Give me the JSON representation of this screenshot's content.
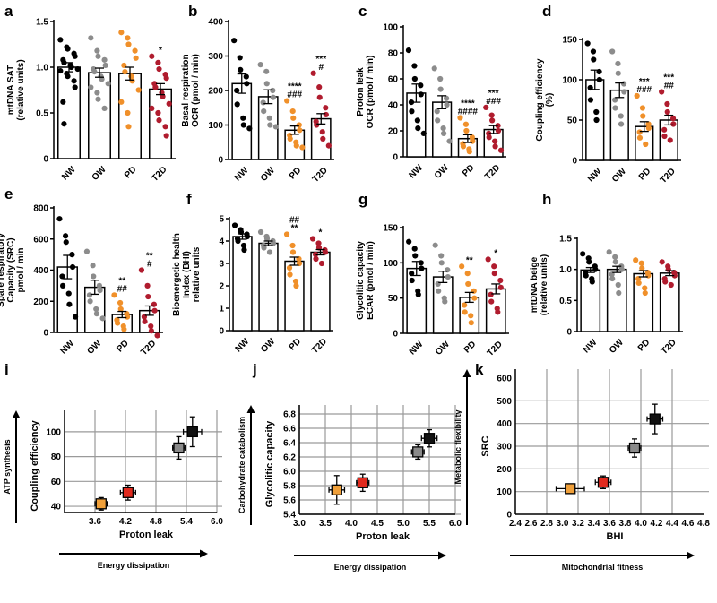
{
  "groups": [
    "NW",
    "OW",
    "PD",
    "T2D"
  ],
  "colors": {
    "NW": "#000000",
    "OW": "#8c8c8c",
    "PD": "#f0902a",
    "T2D": "#b01c2e"
  },
  "markerColors": {
    "NW": "#111111",
    "OW": "#8a8a8a",
    "PD": "#f0a03a",
    "T2D": "#e02a1e"
  },
  "chart_data": [
    {
      "type": "bar",
      "id": "a",
      "letter": "a",
      "ylabel": [
        "mtDNA SAT",
        "(relative units)"
      ],
      "ylim": [
        0,
        1.5
      ],
      "yticks": [
        0,
        0.5,
        1.0,
        1.5
      ],
      "ytickLabels": [
        "0",
        "0.5",
        "1.0",
        "1.5"
      ],
      "categories": [
        "NW",
        "OW",
        "PD",
        "T2D"
      ],
      "values": [
        1.0,
        0.94,
        0.93,
        0.76
      ],
      "errors": [
        0.05,
        0.05,
        0.07,
        0.06
      ],
      "annotations": [
        "",
        "",
        "",
        "*"
      ],
      "points": [
        [
          1.3,
          1.22,
          1.2,
          1.15,
          1.12,
          1.08,
          1.05,
          1.02,
          1.0,
          0.98,
          0.96,
          0.93,
          0.9,
          0.85,
          0.78,
          0.62,
          0.38
        ],
        [
          1.32,
          1.18,
          1.12,
          1.08,
          1.02,
          0.98,
          0.95,
          0.9,
          0.87,
          0.82,
          0.78,
          0.72,
          0.65,
          0.55
        ],
        [
          1.38,
          1.32,
          1.25,
          1.18,
          1.1,
          1.02,
          0.95,
          0.9,
          0.85,
          0.75,
          0.62,
          0.5,
          0.35
        ],
        [
          1.12,
          1.05,
          0.98,
          0.92,
          0.88,
          0.82,
          0.78,
          0.72,
          0.68,
          0.6,
          0.55,
          0.5,
          0.42,
          0.35,
          0.25
        ]
      ]
    },
    {
      "type": "bar",
      "id": "b",
      "letter": "b",
      "ylabel": [
        "Basal respiration",
        "OCR (pmol / min)"
      ],
      "ylim": [
        0,
        400
      ],
      "yticks": [
        0,
        100,
        200,
        300,
        400
      ],
      "ytickLabels": [
        "0",
        "100",
        "200",
        "300",
        "400"
      ],
      "categories": [
        "NW",
        "OW",
        "PD",
        "T2D"
      ],
      "values": [
        220,
        182,
        85,
        118
      ],
      "errors": [
        28,
        20,
        12,
        15
      ],
      "annotations": [
        "",
        "",
        "****\n###",
        "***\n#"
      ],
      "points": [
        [
          345,
          295,
          260,
          240,
          220,
          200,
          160,
          120,
          100,
          90
        ],
        [
          275,
          255,
          220,
          200,
          180,
          165,
          140,
          120,
          100,
          95
        ],
        [
          170,
          140,
          120,
          100,
          85,
          70,
          60,
          50,
          40,
          35
        ],
        [
          250,
          210,
          180,
          150,
          130,
          110,
          100,
          80,
          60,
          40
        ]
      ]
    },
    {
      "type": "bar",
      "id": "c",
      "letter": "c",
      "ylabel": [
        "Proton leak",
        "OCR (pmol / min)"
      ],
      "ylim": [
        0,
        100
      ],
      "yticks": [
        0,
        20,
        40,
        60,
        80,
        100
      ],
      "ytickLabels": [
        "0",
        "20",
        "40",
        "60",
        "80",
        "100"
      ],
      "categories": [
        "NW",
        "OW",
        "PD",
        "T2D"
      ],
      "values": [
        49,
        42,
        14,
        21
      ],
      "errors": [
        7,
        5,
        3,
        3
      ],
      "annotations": [
        "",
        "",
        "****\n####",
        "***\n###"
      ],
      "points": [
        [
          82,
          70,
          60,
          55,
          48,
          42,
          35,
          28,
          22,
          18
        ],
        [
          68,
          60,
          52,
          45,
          40,
          35,
          28,
          22,
          18,
          12
        ],
        [
          30,
          25,
          20,
          15,
          12,
          10,
          8,
          6,
          4
        ],
        [
          38,
          32,
          28,
          24,
          20,
          18,
          15,
          12,
          8,
          5
        ]
      ]
    },
    {
      "type": "bar",
      "id": "d",
      "letter": "d",
      "ylabel": [
        "Coupling efficiency",
        "(%)"
      ],
      "ylim": [
        0,
        150
      ],
      "yticks": [
        0,
        50,
        100,
        150
      ],
      "ytickLabels": [
        "0",
        "50",
        "100",
        "150"
      ],
      "categories": [
        "NW",
        "OW",
        "PD",
        "T2D"
      ],
      "values": [
        100,
        87,
        42,
        50
      ],
      "errors": [
        12,
        9,
        6,
        6
      ],
      "annotations": [
        "",
        "",
        "***\n###",
        "***\n##"
      ],
      "points": [
        [
          145,
          135,
          125,
          110,
          100,
          90,
          75,
          60,
          50
        ],
        [
          135,
          120,
          108,
          95,
          85,
          75,
          65,
          55,
          45
        ],
        [
          80,
          65,
          55,
          45,
          40,
          35,
          28,
          20
        ],
        [
          85,
          70,
          60,
          52,
          45,
          38,
          30,
          25
        ]
      ]
    },
    {
      "type": "bar",
      "id": "e",
      "letter": "e",
      "ylabel": [
        "Spare respiratory",
        "Capacity (SRC)",
        "pmol / min"
      ],
      "ylim": [
        0,
        800
      ],
      "yticks": [
        0,
        200,
        400,
        600,
        800
      ],
      "ytickLabels": [
        "0",
        "200",
        "400",
        "600",
        "800"
      ],
      "categories": [
        "NW",
        "OW",
        "PD",
        "T2D"
      ],
      "values": [
        420,
        290,
        115,
        140
      ],
      "errors": [
        75,
        45,
        20,
        30
      ],
      "annotations": [
        "",
        "",
        "**\n##",
        "**\n#"
      ],
      "points": [
        [
          730,
          620,
          580,
          500,
          420,
          360,
          300,
          250,
          180,
          100
        ],
        [
          520,
          430,
          360,
          300,
          270,
          240,
          200,
          150,
          120,
          90
        ],
        [
          240,
          190,
          150,
          120,
          100,
          80,
          60,
          40,
          20
        ],
        [
          400,
          300,
          230,
          180,
          140,
          100,
          70,
          40,
          10,
          -20
        ]
      ]
    },
    {
      "type": "bar",
      "id": "f",
      "letter": "f",
      "ylabel": [
        "Bioenergetic health",
        "Index (BHI)",
        "relative units"
      ],
      "ylim": [
        0,
        5
      ],
      "yticks": [
        0,
        1,
        2,
        3,
        4,
        5
      ],
      "ytickLabels": [
        "0",
        "1",
        "2",
        "3",
        "4",
        "5"
      ],
      "categories": [
        "NW",
        "OW",
        "PD",
        "T2D"
      ],
      "values": [
        4.2,
        3.9,
        3.1,
        3.5
      ],
      "errors": [
        0.12,
        0.1,
        0.18,
        0.12
      ],
      "annotations": [
        "",
        "",
        "##\n**",
        "*"
      ],
      "points": [
        [
          4.7,
          4.5,
          4.4,
          4.3,
          4.2,
          4.1,
          4.0,
          3.8,
          3.6
        ],
        [
          4.4,
          4.2,
          4.1,
          4.0,
          3.9,
          3.8,
          3.7,
          3.5
        ],
        [
          4.3,
          3.8,
          3.5,
          3.2,
          3.0,
          2.8,
          2.5,
          2.2,
          2.0
        ],
        [
          4.1,
          3.9,
          3.7,
          3.6,
          3.5,
          3.4,
          3.2,
          3.0
        ]
      ]
    },
    {
      "type": "bar",
      "id": "g",
      "letter": "g",
      "ylabel": [
        "Glycolitic capacity",
        "ECAR (pmol / min)"
      ],
      "ylim": [
        0,
        150
      ],
      "yticks": [
        0,
        50,
        100,
        150
      ],
      "ytickLabels": [
        "0",
        "50",
        "100",
        "150"
      ],
      "categories": [
        "NW",
        "OW",
        "PD",
        "T2D"
      ],
      "values": [
        92,
        80,
        51,
        63
      ],
      "errors": [
        10,
        8,
        7,
        7
      ],
      "annotations": [
        "",
        "",
        "**",
        "*"
      ],
      "points": [
        [
          130,
          120,
          110,
          100,
          92,
          85,
          75,
          60,
          55
        ],
        [
          125,
          110,
          100,
          90,
          80,
          70,
          60,
          50,
          45
        ],
        [
          95,
          85,
          70,
          60,
          50,
          40,
          30,
          25,
          15
        ],
        [
          105,
          95,
          85,
          75,
          65,
          55,
          45,
          35,
          30
        ]
      ]
    },
    {
      "type": "bar",
      "id": "h",
      "letter": "h",
      "ylabel": [
        "mtDNA beige",
        "(relative units)"
      ],
      "ylim": [
        0,
        1.5
      ],
      "yticks": [
        0,
        0.5,
        1.0,
        1.5
      ],
      "ytickLabels": [
        "0",
        "0.5",
        "1.0",
        "1.5"
      ],
      "categories": [
        "NW",
        "OW",
        "PD",
        "T2D"
      ],
      "values": [
        0.99,
        1.0,
        0.93,
        0.94
      ],
      "errors": [
        0.04,
        0.05,
        0.05,
        0.04
      ],
      "annotations": [
        "",
        "",
        "",
        ""
      ],
      "points": [
        [
          1.25,
          1.18,
          1.12,
          1.05,
          1.0,
          0.95,
          0.9,
          0.85,
          0.8
        ],
        [
          1.28,
          1.2,
          1.12,
          1.05,
          1.0,
          0.92,
          0.85,
          0.75,
          0.62
        ],
        [
          1.15,
          1.1,
          1.02,
          0.95,
          0.9,
          0.85,
          0.78,
          0.7,
          0.62
        ],
        [
          1.12,
          1.05,
          1.0,
          0.95,
          0.9,
          0.85,
          0.8,
          0.75
        ]
      ]
    },
    {
      "type": "scatter",
      "id": "i",
      "letter": "i",
      "ylabel": "Coupling efficiency",
      "yOuter": "ATP synthesis",
      "xlabel": "Proton leak",
      "xOuter": "Energy dissipation",
      "xlim": [
        3.0,
        6.0
      ],
      "ylim": [
        35,
        110
      ],
      "xgrid": [
        3.6,
        4.2,
        4.8,
        5.4,
        6.0
      ],
      "ygrid": [
        40,
        60,
        80,
        100
      ],
      "xticks": [
        3.6,
        4.2,
        4.8,
        5.4,
        6.0
      ],
      "yticks": [
        40,
        60,
        80,
        100
      ],
      "xtickLabels": [
        "3.6",
        "4.2",
        "4.8",
        "5.4",
        "6.0"
      ],
      "ytickLabels": [
        "40",
        "60",
        "80",
        "100"
      ],
      "points": [
        {
          "group": "NW",
          "x": 5.52,
          "y": 100,
          "xerr": 0.18,
          "yerr": 12
        },
        {
          "group": "OW",
          "x": 5.25,
          "y": 87,
          "xerr": 0.12,
          "yerr": 9
        },
        {
          "group": "PD",
          "x": 3.72,
          "y": 42,
          "xerr": 0.12,
          "yerr": 5
        },
        {
          "group": "T2D",
          "x": 4.25,
          "y": 51,
          "xerr": 0.15,
          "yerr": 6
        }
      ]
    },
    {
      "type": "scatter",
      "id": "j",
      "letter": "j",
      "ylabel": "Glycolitic capacity",
      "yOuter": "Carbohydrate catabolism",
      "xlabel": "Proton leak",
      "xOuter": "Energy dissipation",
      "xlim": [
        3.0,
        6.0
      ],
      "ylim": [
        5.4,
        6.8
      ],
      "xgrid": [
        3.0,
        3.5,
        4.0,
        4.5,
        5.0,
        5.5,
        6.0
      ],
      "ygrid": [
        5.4,
        5.6,
        5.8,
        6.0,
        6.2,
        6.4,
        6.6,
        6.8
      ],
      "xticks": [
        3.0,
        3.5,
        4.0,
        4.5,
        5.0,
        5.5,
        6.0
      ],
      "yticks": [
        5.4,
        5.6,
        5.8,
        6.0,
        6.2,
        6.4,
        6.6,
        6.8
      ],
      "xtickLabels": [
        "3.0",
        "3.5",
        "4.0",
        "4.5",
        "5.0",
        "5.5",
        "6.0"
      ],
      "ytickLabels": [
        "5.4",
        "5.6",
        "5.8",
        "6.0",
        "6.2",
        "6.4",
        "6.6",
        "6.8"
      ],
      "points": [
        {
          "group": "NW",
          "x": 5.5,
          "y": 6.46,
          "xerr": 0.15,
          "yerr": 0.12
        },
        {
          "group": "OW",
          "x": 5.28,
          "y": 6.27,
          "xerr": 0.12,
          "yerr": 0.1
        },
        {
          "group": "PD",
          "x": 3.72,
          "y": 5.74,
          "xerr": 0.15,
          "yerr": 0.2
        },
        {
          "group": "T2D",
          "x": 4.22,
          "y": 5.84,
          "xerr": 0.12,
          "yerr": 0.12
        }
      ]
    },
    {
      "type": "scatter",
      "id": "k",
      "letter": "k",
      "ylabel": "SRC",
      "yOuter": "Metabolic flexibility",
      "xlabel": "BHI",
      "xOuter": "Mitochondrial fitness",
      "xlim": [
        2.4,
        4.8
      ],
      "ylim": [
        0,
        600
      ],
      "xgrid": [
        2.8,
        3.2,
        3.6,
        4.0,
        4.4
      ],
      "ygrid": [
        100,
        200,
        300,
        400,
        500
      ],
      "xticks": [
        2.4,
        2.6,
        2.8,
        3.0,
        3.2,
        3.4,
        3.6,
        3.8,
        4.0,
        4.2,
        4.4,
        4.6,
        4.8
      ],
      "yticks": [
        0,
        100,
        200,
        300,
        400,
        500,
        600
      ],
      "xtickLabels": [
        "2.4",
        "2.6",
        "2.8",
        "3.0",
        "3.2",
        "3.4",
        "3.6",
        "3.8",
        "4.0",
        "4.2",
        "4.4",
        "4.6",
        "4.8"
      ],
      "ytickLabels": [
        "0",
        "100",
        "200",
        "300",
        "400",
        "500",
        "600"
      ],
      "points": [
        {
          "group": "NW",
          "x": 4.18,
          "y": 420,
          "xerr": 0.1,
          "yerr": 65
        },
        {
          "group": "OW",
          "x": 3.92,
          "y": 292,
          "xerr": 0.08,
          "yerr": 40
        },
        {
          "group": "PD",
          "x": 3.1,
          "y": 113,
          "xerr": 0.18,
          "yerr": 20
        },
        {
          "group": "T2D",
          "x": 3.52,
          "y": 141,
          "xerr": 0.1,
          "yerr": 28
        }
      ]
    }
  ]
}
